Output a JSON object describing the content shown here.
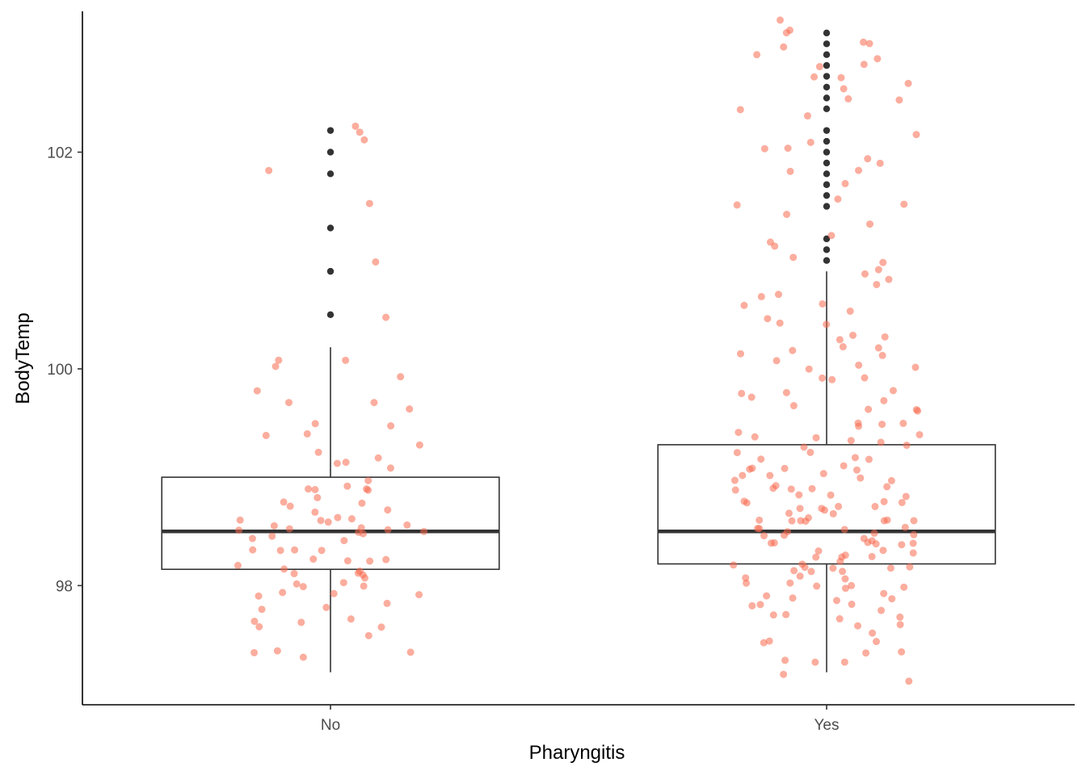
{
  "chart_data": {
    "type": "box",
    "xlabel": "Pharyngitis",
    "ylabel": "BodyTemp",
    "categories": [
      "No",
      "Yes"
    ],
    "ylim": [
      96.9,
      103.3
    ],
    "yticks": [
      98,
      100,
      102
    ],
    "grid": false,
    "jitter_color": "#f8694f",
    "box_color": "#333333",
    "boxes": [
      {
        "category": "No",
        "q1": 98.15,
        "median": 98.5,
        "q3": 99.0,
        "whisker_low": 97.2,
        "whisker_high": 100.2,
        "outliers": [
          100.5,
          100.9,
          101.3,
          101.8,
          102.0,
          102.2
        ]
      },
      {
        "category": "Yes",
        "q1": 98.2,
        "median": 98.5,
        "q3": 99.3,
        "whisker_low": 97.2,
        "whisker_high": 100.9,
        "outliers": [
          101.0,
          101.1,
          101.2,
          101.5,
          101.6,
          101.7,
          101.8,
          101.9,
          102.0,
          102.1,
          102.2,
          102.4,
          102.5,
          102.6,
          102.7,
          102.8,
          102.9,
          103.0,
          103.1
        ]
      }
    ],
    "jitter_points": [
      {
        "category": "No",
        "values": [
          102.2,
          102.2,
          102.1,
          101.8,
          101.5,
          101.0,
          100.5,
          100.1,
          100.0,
          99.9,
          99.8,
          99.7,
          99.7,
          99.6,
          99.5,
          99.5,
          99.4,
          99.4,
          99.3,
          99.2,
          99.2,
          99.1,
          99.1,
          99.0,
          98.95,
          98.9,
          98.9,
          98.9,
          98.85,
          98.85,
          98.8,
          98.8,
          98.75,
          98.7,
          98.7,
          98.6,
          98.6,
          98.6,
          98.6,
          98.55,
          98.55,
          98.55,
          98.55,
          98.5,
          98.5,
          98.5,
          98.5,
          98.5,
          98.45,
          98.45,
          98.4,
          98.4,
          98.35,
          98.3,
          98.3,
          98.3,
          98.25,
          98.2,
          98.2,
          98.2,
          98.2,
          98.15,
          98.15,
          98.1,
          98.1,
          98.1,
          98.1,
          98.05,
          98.0,
          98.0,
          98.0,
          97.95,
          97.9,
          97.9,
          97.9,
          97.85,
          97.8,
          97.75,
          97.7,
          97.7,
          97.7,
          97.65,
          97.6,
          97.55,
          97.4,
          97.4,
          97.35,
          97.3,
          100.1,
          99.1
        ]
      },
      {
        "category": "Yes",
        "values": [
          103.2,
          103.1,
          103.1,
          103.0,
          103.0,
          103.0,
          102.9,
          102.9,
          102.8,
          102.8,
          102.7,
          102.7,
          102.6,
          102.6,
          102.5,
          102.5,
          102.4,
          102.3,
          102.2,
          102.1,
          102.0,
          102.0,
          101.9,
          101.9,
          101.8,
          101.8,
          101.7,
          101.6,
          101.5,
          101.5,
          101.4,
          101.3,
          101.2,
          101.2,
          101.1,
          101.0,
          101.0,
          100.9,
          100.9,
          100.8,
          100.8,
          100.7,
          100.7,
          100.6,
          100.6,
          100.5,
          100.5,
          100.4,
          100.4,
          100.3,
          100.3,
          100.3,
          100.2,
          100.2,
          100.2,
          100.1,
          100.1,
          100.1,
          100.0,
          100.0,
          100.0,
          99.9,
          99.9,
          99.9,
          99.8,
          99.8,
          99.8,
          99.7,
          99.7,
          99.7,
          99.6,
          99.6,
          99.6,
          99.5,
          99.5,
          99.5,
          99.5,
          99.4,
          99.4,
          99.4,
          99.4,
          99.3,
          99.3,
          99.3,
          99.3,
          99.2,
          99.2,
          99.2,
          99.2,
          99.2,
          99.1,
          99.1,
          99.1,
          99.1,
          99.1,
          99.0,
          99.0,
          99.0,
          99.0,
          99.0,
          99.0,
          98.9,
          98.9,
          98.9,
          98.9,
          98.9,
          98.9,
          98.8,
          98.8,
          98.8,
          98.8,
          98.8,
          98.8,
          98.8,
          98.7,
          98.7,
          98.7,
          98.7,
          98.7,
          98.7,
          98.7,
          98.6,
          98.6,
          98.6,
          98.6,
          98.6,
          98.6,
          98.6,
          98.6,
          98.5,
          98.5,
          98.5,
          98.5,
          98.5,
          98.5,
          98.5,
          98.5,
          98.5,
          98.4,
          98.4,
          98.4,
          98.4,
          98.4,
          98.4,
          98.4,
          98.4,
          98.3,
          98.3,
          98.3,
          98.3,
          98.3,
          98.3,
          98.3,
          98.2,
          98.2,
          98.2,
          98.2,
          98.2,
          98.2,
          98.2,
          98.1,
          98.1,
          98.1,
          98.1,
          98.1,
          98.1,
          98.0,
          98.0,
          98.0,
          98.0,
          98.0,
          98.0,
          97.9,
          97.9,
          97.9,
          97.9,
          97.9,
          97.8,
          97.8,
          97.8,
          97.8,
          97.7,
          97.7,
          97.7,
          97.7,
          97.6,
          97.6,
          97.6,
          97.5,
          97.5,
          97.5,
          97.4,
          97.4,
          97.3,
          97.3,
          97.3,
          97.2,
          97.1
        ]
      }
    ]
  }
}
